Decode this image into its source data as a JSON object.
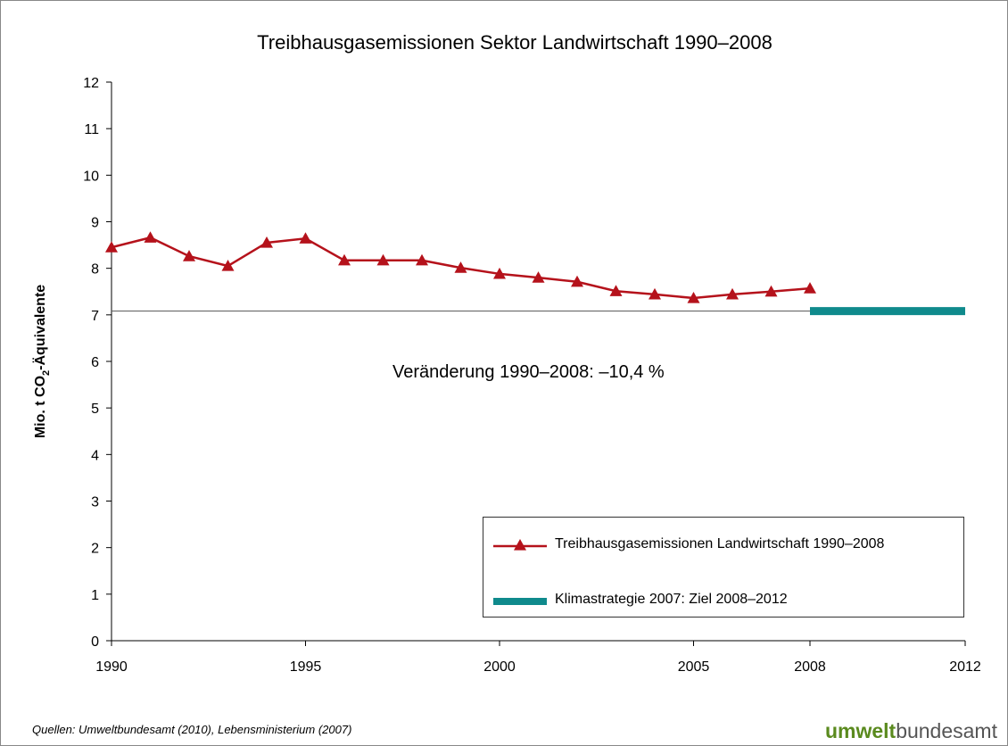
{
  "chart_data": {
    "type": "line",
    "title": "Treibhausgasemissionen Sektor Landwirtschaft 1990–2008",
    "ylabel": [
      "Mio. t CO",
      "2",
      "-Äquivalente"
    ],
    "annotation": "Veränderung 1990–2008: –10,4 %",
    "source": "Quellen: Umweltbundesamt (2010), Lebensministerium (2007)",
    "logo": [
      "umwelt",
      "bundesamt"
    ],
    "xlim": [
      1990,
      2012
    ],
    "xticks": [
      1990,
      1995,
      2000,
      2005,
      2008,
      2012
    ],
    "ylim": [
      0,
      12
    ],
    "yticks": [
      0,
      1,
      2,
      3,
      4,
      5,
      6,
      7,
      8,
      9,
      10,
      11,
      12
    ],
    "series": [
      {
        "name": "Treibhausgasemissionen Landwirtschaft 1990–2008",
        "color": "#b5121b",
        "marker": "triangle",
        "x": [
          1990,
          1991,
          1992,
          1993,
          1994,
          1995,
          1996,
          1997,
          1998,
          1999,
          2000,
          2001,
          2002,
          2003,
          2004,
          2005,
          2006,
          2007,
          2008
        ],
        "values": [
          8.45,
          8.66,
          8.26,
          8.05,
          8.55,
          8.64,
          8.17,
          8.17,
          8.17,
          8.01,
          7.88,
          7.8,
          7.71,
          7.51,
          7.44,
          7.36,
          7.44,
          7.5,
          7.57
        ]
      },
      {
        "name": "Klimastrategie 2007: Ziel 2008–2012",
        "color": "#0f8a8c",
        "marker": "none",
        "x": [
          2008,
          2012
        ],
        "values": [
          7.08,
          7.08
        ]
      }
    ]
  }
}
